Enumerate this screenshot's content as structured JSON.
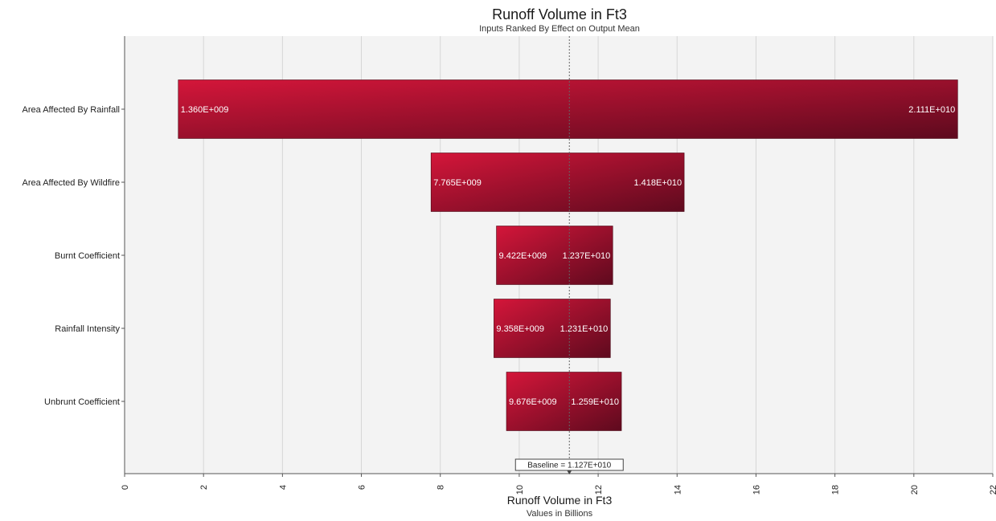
{
  "chart_data": {
    "type": "bar",
    "orientation": "horizontal",
    "subtype": "tornado",
    "title": "Runoff Volume in Ft3",
    "subtitle": "Inputs Ranked By Effect on Output Mean",
    "xlabel": "Runoff Volume in Ft3",
    "xlabel_sub": "Values in Billions",
    "xlim": [
      0,
      22
    ],
    "xticks": [
      "0",
      "2",
      "4",
      "6",
      "8",
      "10",
      "12",
      "14",
      "16",
      "18",
      "20",
      "22"
    ],
    "grid": true,
    "categories": [
      "Area Affected By Rainfall",
      "Area Affected By Wildfire",
      "Burnt Coefficient",
      "Rainfall Intensity",
      "Unbrunt Coefficient"
    ],
    "low_values": [
      1.36,
      7.765,
      9.422,
      9.358,
      9.676
    ],
    "high_values": [
      21.11,
      14.18,
      12.37,
      12.31,
      12.59
    ],
    "low_labels": [
      "1.360E+009",
      "7.765E+009",
      "9.422E+009",
      "9.358E+009",
      "9.676E+009"
    ],
    "high_labels": [
      "2.111E+010",
      "1.418E+010",
      "1.237E+010",
      "1.231E+010",
      "1.259E+010"
    ],
    "baseline_value": 11.27,
    "baseline_label": "Baseline = 1.127E+010",
    "colors": {
      "bar_light": "#d4163a",
      "bar_dark": "#5e0a1e",
      "plot_bg": "#f3f3f3",
      "grid": "#d6d6d6"
    }
  }
}
